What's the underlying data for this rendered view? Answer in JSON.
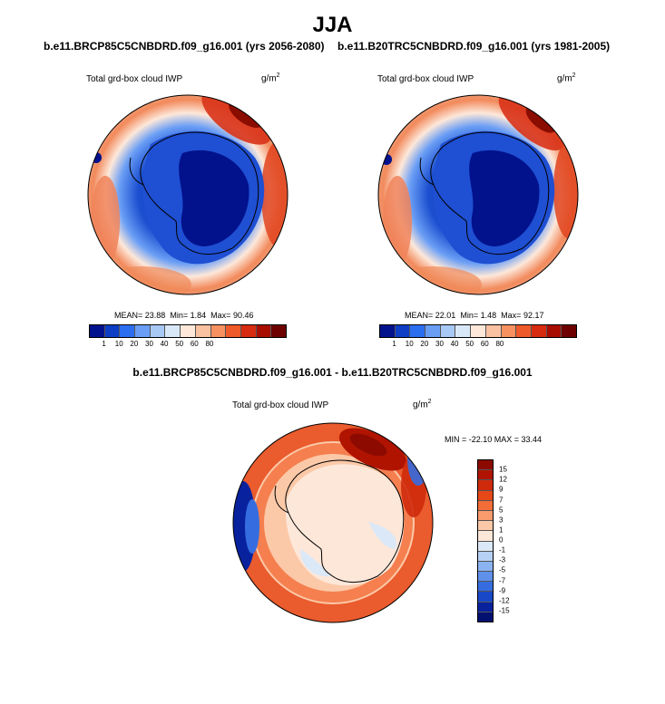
{
  "page": {
    "season": "JJA",
    "diff_title": "b.e11.BRCP85C5CNBDRD.f09_g16.001 - b.e11.B20TRC5CNBDRD.f09_g16.001"
  },
  "panels": [
    {
      "title": "b.e11.BRCP85C5CNBDRD.f09_g16.001 (yrs 2056-2080)",
      "variable": "Total grd-box cloud IWP",
      "units_base": "g/m",
      "units_exp": "2",
      "mean_label": "MEAN=",
      "mean": "23.88",
      "min_label": "Min=",
      "min": "1.84",
      "max_label": "Max=",
      "max": "90.46"
    },
    {
      "title": "b.e11.B20TRC5CNBDRD.f09_g16.001 (yrs 1981-2005)",
      "variable": "Total grd-box cloud IWP",
      "units_base": "g/m",
      "units_exp": "2",
      "mean_label": "MEAN=",
      "mean": "22.01",
      "min_label": "Min=",
      "min": "1.48",
      "max_label": "Max=",
      "max": "92.17"
    }
  ],
  "diff_panel": {
    "variable": "Total grd-box cloud IWP",
    "units_base": "g/m",
    "units_exp": "2",
    "stats": "MIN = -22.10 MAX =  33.44"
  },
  "colorbar_abs": {
    "ticks": [
      "1",
      "10",
      "20",
      "30",
      "40",
      "50",
      "60",
      "80"
    ],
    "colors": [
      "#02128c",
      "#0d3ec4",
      "#2b6ef0",
      "#6a9ef5",
      "#a9c9f5",
      "#d9e8f7",
      "#fde8da",
      "#fbc2a2",
      "#f79160",
      "#ee5a2a",
      "#d82c10",
      "#a80e00",
      "#6e0000"
    ]
  },
  "colorbar_diff": {
    "ticks": [
      "15",
      "12",
      "9",
      "7",
      "5",
      "3",
      "1",
      "0",
      "-1",
      "-3",
      "-5",
      "-7",
      "-9",
      "-12",
      "-15"
    ],
    "colors": [
      "#8c0a00",
      "#b01400",
      "#cf2a0c",
      "#e64818",
      "#f36d38",
      "#f99a6d",
      "#fcc9a8",
      "#fde7d9",
      "#dbe8f7",
      "#b6d0f4",
      "#8cb3f1",
      "#5f90ea",
      "#356de0",
      "#1848c8",
      "#08229e",
      "#021070"
    ]
  },
  "map_colors": {
    "ocean_base": "#e8715a",
    "deep_blue": "#0a2ea8",
    "mid_blue": "#2f5fd8",
    "light_blue": "#7ea6ee",
    "pale": "#f6dcd0",
    "red": "#d83318",
    "dark_red": "#8a0d00"
  }
}
